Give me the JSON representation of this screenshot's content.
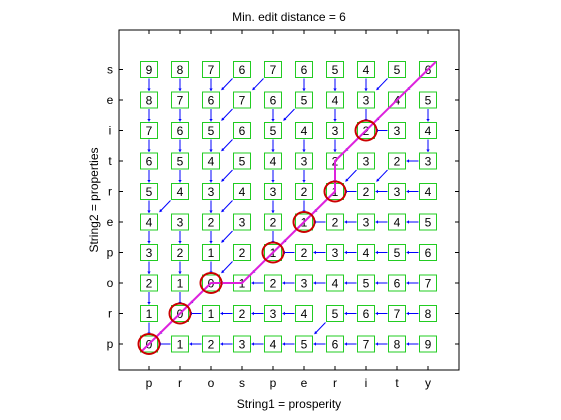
{
  "chart_data": {
    "type": "heatmap",
    "title": "Min. edit distance = 6",
    "xlabel": "String1 = prosperity",
    "ylabel": "String2 = properties",
    "x_labels": [
      "p",
      "r",
      "o",
      "s",
      "p",
      "e",
      "r",
      "i",
      "t",
      "y"
    ],
    "y_labels": [
      "p",
      "r",
      "o",
      "p",
      "e",
      "r",
      "t",
      "i",
      "e",
      "s"
    ],
    "grid": false,
    "matrix": [
      [
        0,
        1,
        2,
        3,
        4,
        5,
        6,
        7,
        8,
        9
      ],
      [
        1,
        0,
        1,
        2,
        3,
        4,
        5,
        6,
        7,
        8
      ],
      [
        2,
        1,
        0,
        1,
        2,
        3,
        4,
        5,
        6,
        7
      ],
      [
        3,
        2,
        1,
        2,
        1,
        2,
        3,
        4,
        5,
        6
      ],
      [
        4,
        3,
        2,
        3,
        2,
        1,
        2,
        3,
        4,
        5
      ],
      [
        5,
        4,
        3,
        4,
        3,
        2,
        1,
        2,
        3,
        4
      ],
      [
        6,
        5,
        4,
        5,
        4,
        3,
        2,
        3,
        2,
        3
      ],
      [
        7,
        6,
        5,
        6,
        5,
        4,
        3,
        2,
        3,
        4
      ],
      [
        8,
        7,
        6,
        7,
        6,
        5,
        4,
        3,
        4,
        5
      ],
      [
        9,
        8,
        7,
        6,
        7,
        6,
        5,
        4,
        5,
        6
      ]
    ],
    "arrows": [
      [
        "",
        "L",
        "L",
        "L",
        "L",
        "L",
        "L",
        "L",
        "L",
        "L"
      ],
      [
        "D",
        "DL",
        "L",
        "L",
        "L",
        "L",
        "DL",
        "L",
        "L",
        "L"
      ],
      [
        "D",
        "D",
        "DL",
        "L",
        "L",
        "L",
        "L",
        "L",
        "L",
        "L"
      ],
      [
        "D",
        "D",
        "D",
        "DL",
        "DL",
        "L",
        "L",
        "L",
        "L",
        "L"
      ],
      [
        "D",
        "D",
        "D",
        "DL",
        "D",
        "DL",
        "L",
        "L",
        "L",
        "L"
      ],
      [
        "D",
        "DL",
        "D",
        "DL",
        "D",
        "D",
        "DL",
        "L",
        "L",
        "L"
      ],
      [
        "D",
        "D",
        "D",
        "DL",
        "D",
        "D",
        "D",
        "DL",
        "DL",
        "L"
      ],
      [
        "D",
        "D",
        "D",
        "DL",
        "D",
        "D",
        "D",
        "DL",
        "L",
        "D"
      ],
      [
        "D",
        "D",
        "D",
        "DL",
        "D",
        "DL",
        "D",
        "D",
        "DL",
        "D"
      ],
      [
        "D",
        "D",
        "D",
        "DL",
        "DL",
        "D",
        "D",
        "D",
        "DL",
        "DL"
      ]
    ],
    "highlighted_cells": [
      [
        0,
        0
      ],
      [
        1,
        1
      ],
      [
        2,
        2
      ],
      [
        3,
        4
      ],
      [
        4,
        5
      ],
      [
        5,
        6
      ],
      [
        7,
        7
      ]
    ],
    "path": [
      [
        0,
        0
      ],
      [
        1,
        1
      ],
      [
        2,
        2
      ],
      [
        2,
        3
      ],
      [
        3,
        4
      ],
      [
        4,
        5
      ],
      [
        5,
        6
      ],
      [
        6,
        6
      ],
      [
        9,
        9
      ]
    ],
    "colors": {
      "cell_border": "#22cc22",
      "arrow": "#0000ff",
      "circle": "#cc0000",
      "path": "#dd22dd"
    }
  }
}
